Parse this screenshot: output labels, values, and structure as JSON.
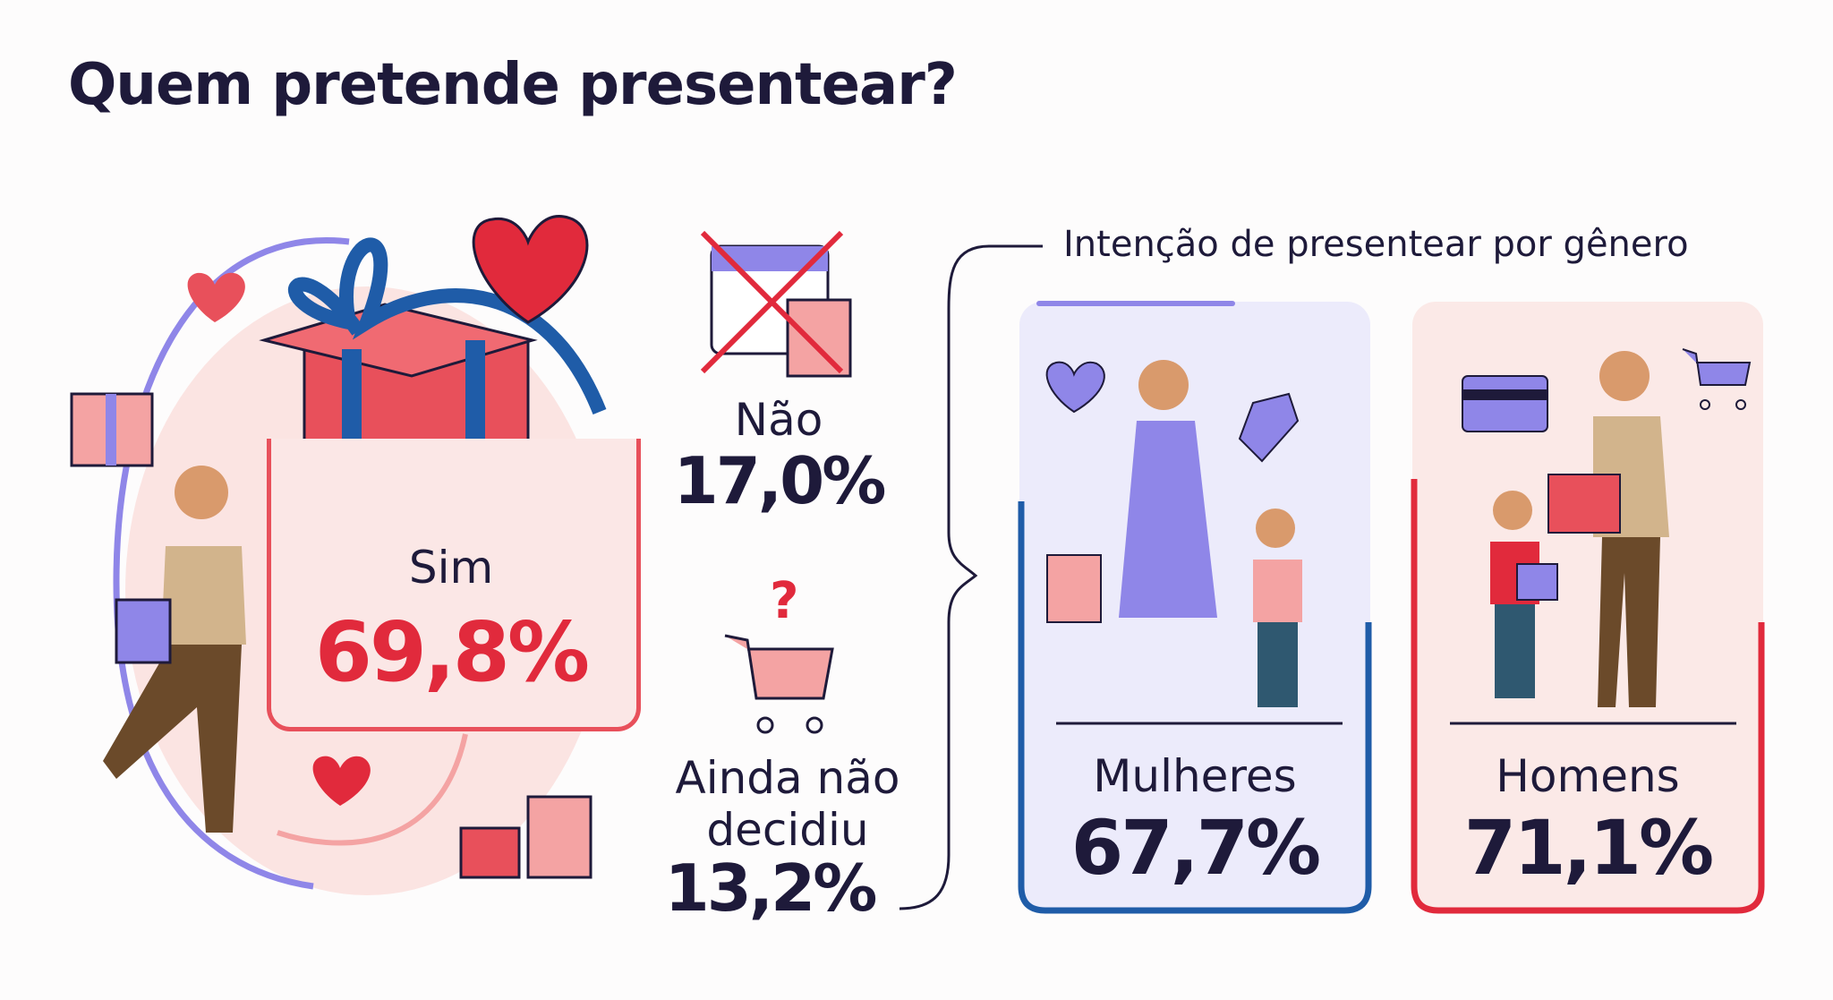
{
  "title": "Quem pretende presentear?",
  "overall": {
    "yes": {
      "label": "Sim",
      "value": "69,8%"
    },
    "no": {
      "label": "Não",
      "value": "17,0%"
    },
    "undecided": {
      "label_line1": "Ainda não",
      "label_line2": "decidiu",
      "value": "13,2%"
    }
  },
  "gender": {
    "heading": "Intenção de presentear por gênero",
    "women": {
      "label": "Mulheres",
      "value": "67,7%",
      "accent": "#1f5ca8"
    },
    "men": {
      "label": "Homens",
      "value": "71,1%",
      "accent": "#e12a3c"
    }
  },
  "colors": {
    "title": "#1e1a3a",
    "yes": "#e12a3c",
    "purple": "#8f86e8",
    "pink": "#f4a3a3"
  },
  "icons": [
    "gift-box-icon",
    "heart-icon",
    "shopping-bag-icon",
    "calendar-crossed-icon",
    "cart-question-icon",
    "price-tag-icon",
    "credit-card-icon",
    "cart-icon"
  ]
}
